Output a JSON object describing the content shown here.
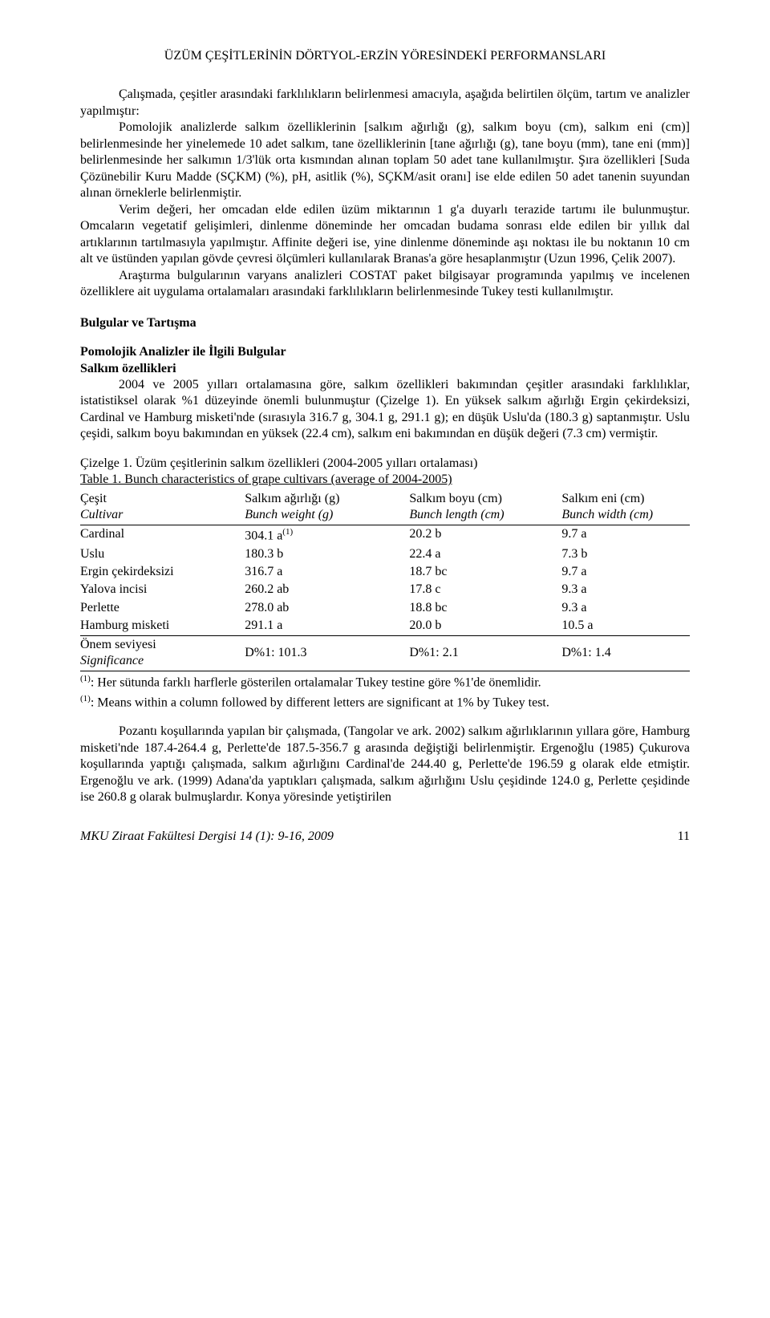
{
  "page": {
    "title": "ÜZÜM ÇEŞİTLERİNİN DÖRTYOL-ERZİN YÖRESİNDEKİ PERFORMANSLARI"
  },
  "paragraphs": {
    "p1": "Çalışmada, çeşitler arasındaki farklılıkların belirlenmesi amacıyla, aşağıda belirtilen ölçüm, tartım ve analizler yapılmıştır:",
    "p2": "Pomolojik analizlerde salkım özelliklerinin [salkım ağırlığı (g), salkım boyu (cm), salkım eni (cm)] belirlenmesinde her yinelemede 10 adet salkım, tane özelliklerinin [tane ağırlığı (g), tane boyu (mm), tane eni (mm)] belirlenmesinde her salkımın 1/3'lük orta kısmından alınan toplam 50 adet tane kullanılmıştır. Şıra özellikleri [Suda Çözünebilir Kuru Madde (SÇKM) (%), pH, asitlik (%), SÇKM/asit oranı] ise elde edilen 50 adet tanenin suyundan alınan örneklerle belirlenmiştir.",
    "p3": "Verim değeri, her omcadan elde edilen üzüm miktarının 1 g'a duyarlı terazide tartımı ile bulunmuştur. Omcaların vegetatif gelişimleri, dinlenme döneminde her omcadan budama sonrası elde edilen bir yıllık dal artıklarının tartılmasıyla yapılmıştır. Affinite değeri ise, yine dinlenme döneminde aşı noktası ile bu noktanın 10 cm alt ve üstünden yapılan gövde çevresi ölçümleri kullanılarak Branas'a göre hesaplanmıştır (Uzun 1996, Çelik 2007).",
    "p4": "Araştırma bulgularının varyans analizleri COSTAT paket bilgisayar programında yapılmış ve incelenen özelliklere ait uygulama ortalamaları arasındaki farklılıkların belirlenmesinde Tukey testi kullanılmıştır.",
    "s1": "Bulgular ve Tartışma",
    "s2": "Pomolojik Analizler ile İlgili Bulgular",
    "s3": "Salkım özellikleri",
    "p5": "2004 ve 2005 yılları ortalamasına göre, salkım özellikleri bakımından çeşitler arasındaki farklılıklar, istatistiksel olarak %1 düzeyinde önemli bulunmuştur (Çizelge 1). En yüksek salkım ağırlığı Ergin çekirdeksizi, Cardinal ve Hamburg misketi'nde (sırasıyla 316.7 g, 304.1 g, 291.1 g); en düşük Uslu'da (180.3 g) saptanmıştır. Uslu çeşidi, salkım boyu bakımından en yüksek (22.4 cm), salkım eni bakımından en düşük değeri (7.3 cm) vermiştir.",
    "tcap1": "Çizelge 1. Üzüm çeşitlerinin salkım özellikleri (2004-2005 yılları ortalaması)",
    "tcap2": "Table 1. Bunch characteristics of  grape cultivars (average of 2004-2005)",
    "p6": "Pozantı koşullarında yapılan bir çalışmada, (Tangolar ve ark. 2002) salkım ağırlıklarının yıllara göre, Hamburg misketi'nde 187.4-264.4 g, Perlette'de 187.5-356.7 g arasında değiştiği belirlenmiştir. Ergenoğlu (1985) Çukurova koşullarında yaptığı çalışmada, salkım ağırlığını Cardinal'de 244.40 g, Perlette'de 196.59 g olarak elde etmiştir. Ergenoğlu ve ark. (1999) Adana'da yaptıkları çalışmada, salkım ağırlığını Uslu çeşidinde 124.0 g, Perlette çeşidinde ise 260.8 g olarak bulmuşlardır. Konya yöresinde yetiştirilen"
  },
  "table": {
    "head": {
      "c0a": "Çeşit",
      "c0b": "Cultivar",
      "c1a": "Salkım ağırlığı (g)",
      "c1b": "Bunch weight (g)",
      "c2a": "Salkım boyu (cm)",
      "c2b": "Bunch length (cm)",
      "c3a": "Salkım eni (cm)",
      "c3b": "Bunch width (cm)"
    },
    "rows": [
      {
        "name": "Cardinal",
        "c1": "304.1 a",
        "c1sup": "(1)",
        "c2": "20.2 b",
        "c3": "9.7 a"
      },
      {
        "name": "Uslu",
        "c1": "180.3 b",
        "c1sup": "",
        "c2": "22.4 a",
        "c3": "7.3 b"
      },
      {
        "name": "Ergin çekirdeksizi",
        "c1": "316.7 a",
        "c1sup": "",
        "c2": "18.7 bc",
        "c3": "9.7 a"
      },
      {
        "name": "Yalova incisi",
        "c1": "260.2 ab",
        "c1sup": "",
        "c2": "17.8 c",
        "c3": "9.3 a"
      },
      {
        "name": "Perlette",
        "c1": "278.0 ab",
        "c1sup": "",
        "c2": "18.8 bc",
        "c3": "9.3 a"
      },
      {
        "name": "Hamburg misketi",
        "c1": "291.1 a",
        "c1sup": "",
        "c2": "20.0 b",
        "c3": "10.5 a"
      }
    ],
    "sig": {
      "labela": "Önem seviyesi",
      "labelb": "Significance",
      "c1": "D%1: 101.3",
      "c2": "D%1: 2.1",
      "c3": "D%1: 1.4"
    },
    "foot1": ": Her sütunda farklı harflerle gösterilen ortalamalar Tukey testine göre %1'de önemlidir.",
    "foot2": ": Means within a column followed by different letters are significant at 1% by Tukey test.",
    "foot_sup": "(1)"
  },
  "footer": {
    "journal": "MKU Ziraat Fakültesi Dergisi 14 (1): 9-16, 2009",
    "page": "11"
  },
  "style": {
    "col_widths": [
      "27%",
      "27%",
      "25%",
      "21%"
    ]
  }
}
